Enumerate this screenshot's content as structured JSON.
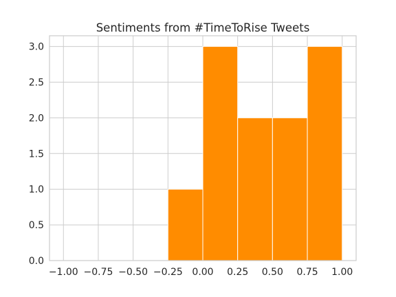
{
  "chart_data": {
    "type": "bar",
    "title": "Sentiments from #TimeToRise Tweets",
    "xlabel": "",
    "ylabel": "",
    "bin_edges": [
      -1.0,
      -0.75,
      -0.5,
      -0.25,
      0.0,
      0.25,
      0.5,
      0.75,
      1.0
    ],
    "counts": [
      0,
      0,
      0,
      1,
      3,
      2,
      2,
      3
    ],
    "xlim": [
      -1.1,
      1.1
    ],
    "ylim": [
      0,
      3.15
    ],
    "x_ticks": [
      -1.0,
      -0.75,
      -0.5,
      -0.25,
      0.0,
      0.25,
      0.5,
      0.75,
      1.0
    ],
    "x_tick_labels": [
      "−1.00",
      "−0.75",
      "−0.50",
      "−0.25",
      "0.00",
      "0.25",
      "0.50",
      "0.75",
      "1.00"
    ],
    "y_ticks": [
      0.0,
      0.5,
      1.0,
      1.5,
      2.0,
      2.5,
      3.0
    ],
    "y_tick_labels": [
      "0.0",
      "0.5",
      "1.0",
      "1.5",
      "2.0",
      "2.5",
      "3.0"
    ],
    "grid": true,
    "bar_color": "#ff8c00",
    "grid_color": "#cccccc",
    "spine_color": "#cccccc",
    "text_color": "#262626"
  }
}
